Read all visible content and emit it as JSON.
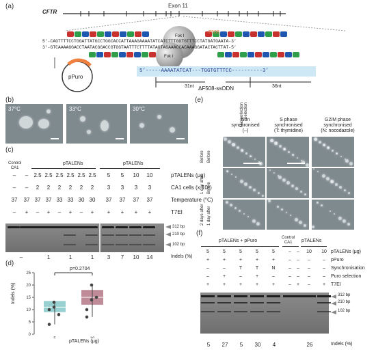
{
  "panels": {
    "a": {
      "label": "(a)",
      "gene": "CFTR",
      "exon": "Exon 11",
      "fok1": "Fok I",
      "f508": "F508",
      "seq_top": "5’-CAGTTTTCCTGGATTATGCCTGGCACCATTAAAGAAAATATCATCTTTGGTGTTTCCTATGATGAATA-3’",
      "seq_bot": "3’-GTCAAAAGGACCTAATACGGACCGTGGTAATTTCTTTTATAGTAGAAACCACAAAGGATACTACTTAT-5’",
      "plasmid": "pPuro",
      "odn_seq": "5’-----AAAATATCAT---TGGTGTTTCC----------3’",
      "len_left": "31nt",
      "len_right": "36nt",
      "odn_name": "ΔF508-ssODN"
    },
    "b": {
      "label": "(b)",
      "temps": [
        "37°C",
        "33°C",
        "30°C"
      ]
    },
    "c": {
      "label": "(c)",
      "control": "Control\nCA1",
      "group1": "pTALENs",
      "group2": "pTALENs",
      "rows": [
        {
          "label": "pTALENs (μg)",
          "values": [
            "–",
            "–",
            "2.5",
            "2.5",
            "2.5",
            "2.5",
            "2.5",
            "2.5",
            "5",
            "5",
            "10",
            "10"
          ]
        },
        {
          "label": "CA1 cells (x 10⁶)",
          "values": [
            "–",
            "–",
            "2",
            "2",
            "2",
            "2",
            "2",
            "2",
            "3",
            "3",
            "3",
            "3"
          ]
        },
        {
          "label": "Temperature (°C)",
          "values": [
            "37",
            "37",
            "37",
            "37",
            "33",
            "33",
            "30",
            "30",
            "37",
            "37",
            "37",
            "37"
          ]
        },
        {
          "label": "T7EI",
          "values": [
            "–",
            "+",
            "–",
            "+",
            "–",
            "+",
            "–",
            "+",
            "+",
            "+",
            "+",
            "+"
          ]
        }
      ],
      "bands": [
        "312 bp",
        "210 bp",
        "102 bp"
      ],
      "indels_label": "Indels (%)",
      "indels": [
        "–",
        "1",
        "1",
        "1",
        "3",
        "7",
        "10",
        "14"
      ]
    },
    "d": {
      "label": "(d)",
      "p_value": "p=0.2704",
      "ylabel": "Indels (%)",
      "xlabel": "pTALENs (μg)",
      "yticks": [
        "0",
        "5",
        "10",
        "15",
        "20",
        "25"
      ]
    },
    "e": {
      "label": "(e)",
      "side_header": "Nucleofection\nSelection",
      "columns": [
        "Non\nsynchronised\n(–)",
        "S phase\nsynchronised\n(T: thymidine)",
        "G2/M phase\nsynchronised\n(N: nocodazole)"
      ],
      "rows": [
        {
          "nuc": "Before",
          "sel": "Before"
        },
        {
          "nuc": "1 day after",
          "sel": "Before"
        },
        {
          "nuc": "2 days after",
          "sel": "1 day after"
        }
      ]
    },
    "f": {
      "label": "(f)",
      "group1": "pTALENs + pPuro",
      "control": "Control\nCA1",
      "group2": "pTALENs",
      "rows": [
        {
          "label": "pTALENs (μg)",
          "values": [
            "5",
            "5",
            "5",
            "5",
            "5",
            "–",
            "–",
            "10",
            "10"
          ]
        },
        {
          "label": "pPuro",
          "values": [
            "+",
            "+",
            "+",
            "+",
            "+",
            "–",
            "–",
            "–",
            "–"
          ]
        },
        {
          "label": "Synchronisation",
          "values": [
            "–",
            "–",
            "T",
            "T",
            "N",
            "–",
            "–",
            "–",
            "–"
          ]
        },
        {
          "label": "Puro selection",
          "values": [
            "–",
            "+",
            "–",
            "+",
            "–",
            "–",
            "–",
            "–",
            "–"
          ]
        },
        {
          "label": "T7EI",
          "values": [
            "+",
            "+",
            "+",
            "+",
            "+",
            "–",
            "+",
            "–",
            "+"
          ]
        }
      ],
      "bands": [
        "312 bp",
        "210 bp",
        "102 bp"
      ],
      "indels_label": "Indels (%)",
      "indels": [
        "5",
        "27",
        "5",
        "30",
        "4",
        "26"
      ]
    }
  },
  "chart_data": {
    "type": "box",
    "categories": [
      "5",
      "10"
    ],
    "points": [
      [
        10,
        13,
        8,
        4,
        11
      ],
      [
        10,
        14,
        15,
        7,
        20
      ]
    ],
    "box_q1": [
      9,
      12
    ],
    "box_median": [
      11,
      15
    ],
    "box_q3": [
      13.5,
      18
    ],
    "colors": [
      "#7dc4c4",
      "#b06e7f"
    ],
    "ylim": [
      0,
      25
    ],
    "grid": false
  }
}
